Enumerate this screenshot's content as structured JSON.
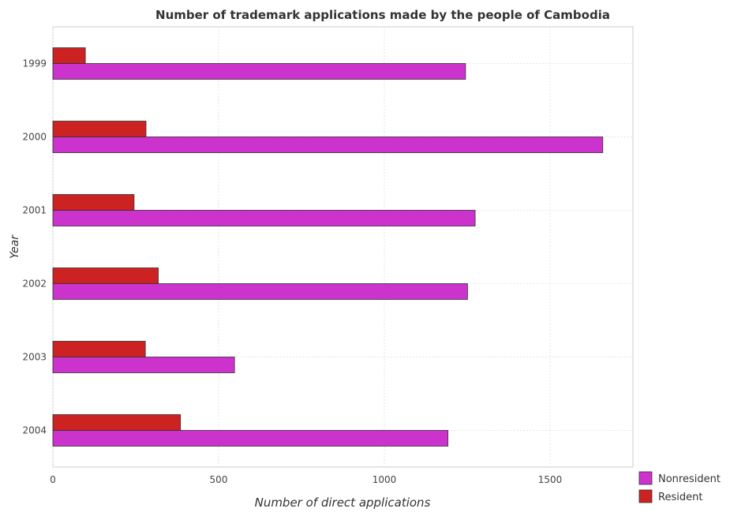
{
  "chart_data": {
    "type": "bar",
    "orientation": "horizontal",
    "title": "Number of trademark applications made by the people of Cambodia",
    "xlabel": "Number of direct applications",
    "ylabel": "Year",
    "categories": [
      "1999",
      "2000",
      "2001",
      "2002",
      "2003",
      "2004"
    ],
    "series": [
      {
        "name": "Nonresident",
        "color": "#cc33cc",
        "values": [
          1245,
          1659,
          1274,
          1251,
          548,
          1192
        ]
      },
      {
        "name": "Resident",
        "color": "#cc2222",
        "values": [
          98,
          281,
          245,
          318,
          279,
          385
        ]
      }
    ],
    "xlim": [
      0,
      1750
    ],
    "xticks": [
      0,
      500,
      1000,
      1500
    ],
    "grid": true,
    "legend_position": "bottom-right"
  }
}
